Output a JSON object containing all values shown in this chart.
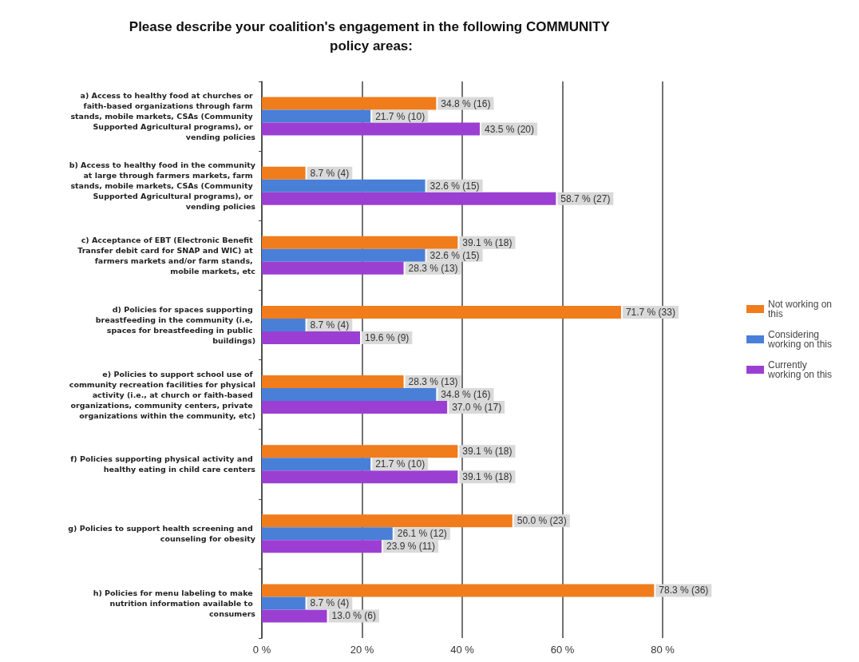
{
  "chart_data": {
    "type": "bar",
    "orientation": "horizontal",
    "title": "Please describe your coalition's engagement in the following COMMUNITY policy areas:",
    "categories": [
      "a) Access to healthy food at churches or faith-based organizations through farm stands, mobile markets, CSAs (Community Supported Agricultural programs), or vending policies",
      "b) Access to healthy food in the community at large through farmers markets, farm stands, mobile markets, CSAs (Community Supported Agricultural programs), or vending policies",
      "c) Acceptance of EBT (Electronic Benefit Transfer debit card for SNAP and WIC) at farmers markets and/or farm stands, mobile markets, etc",
      "d) Policies for spaces supporting breastfeeding in the community (i.e, spaces for breastfeeding in public buildings)",
      "e) Policies to support school use of community recreation facilities for physical activity (i.e., at church or faith-based organizations, community centers, private organizations within the community, etc)",
      "f) Policies supporting physical activity and healthy eating in child care centers",
      "g) Policies to support health screening and counseling for obesity",
      "h) Policies for menu labeling to make nutrition information available to consumers"
    ],
    "series": [
      {
        "name": "Not working on this",
        "color": "#f07c1c",
        "values": [
          34.8,
          8.7,
          39.1,
          71.7,
          28.3,
          39.1,
          50.0,
          78.3
        ],
        "value_labels": [
          "34.8 % (16)",
          "8.7 % (4)",
          "39.1 % (18)",
          "71.7 % (33)",
          "28.3 % (13)",
          "39.1 % (18)",
          "50.0 % (23)",
          "78.3 % (36)"
        ]
      },
      {
        "name": "Considering working on this",
        "color": "#4a7fd8",
        "values": [
          21.7,
          32.6,
          32.6,
          8.7,
          34.8,
          21.7,
          26.1,
          8.7
        ],
        "value_labels": [
          "21.7 % (10)",
          "32.6 % (15)",
          "32.6 % (15)",
          "8.7 % (4)",
          "34.8 % (16)",
          "21.7 % (10)",
          "26.1 % (12)",
          "8.7 % (4)"
        ]
      },
      {
        "name": "Currently working on this",
        "color": "#9b3fd2",
        "values": [
          43.5,
          58.7,
          28.3,
          19.6,
          37.0,
          39.1,
          23.9,
          13.0
        ],
        "value_labels": [
          "43.5 % (20)",
          "58.7 % (27)",
          "28.3 % (13)",
          "19.6 % (9)",
          "37.0 % (17)",
          "39.1 % (18)",
          "23.9 % (11)",
          "13.0 % (6)"
        ]
      }
    ],
    "xlim": [
      0,
      80
    ],
    "xticks": [
      {
        "value": 0,
        "label": "0 %"
      },
      {
        "value": 20,
        "label": "20 %"
      },
      {
        "value": 40,
        "label": "40 %"
      },
      {
        "value": 60,
        "label": "60 %"
      },
      {
        "value": 80,
        "label": "80 %"
      }
    ],
    "grid": "x",
    "legend": "right"
  }
}
